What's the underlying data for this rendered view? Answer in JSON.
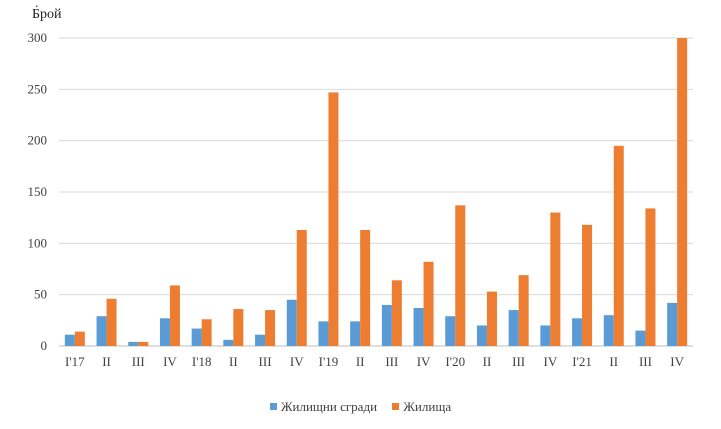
{
  "chart_data": {
    "type": "bar",
    "title": "",
    "top_mark": ".",
    "ylabel": "Брой",
    "xlabel": "",
    "ylim": [
      0,
      300
    ],
    "yticks": [
      0,
      50,
      100,
      150,
      200,
      250,
      300
    ],
    "grid": true,
    "legend_position": "bottom",
    "categories": [
      "I'17",
      "II",
      "III",
      "IV",
      "I'18",
      "II",
      "III",
      "IV",
      "I'19",
      "II",
      "III",
      "IV",
      "I'20",
      "II",
      "III",
      "IV",
      "I'21",
      "II",
      "III",
      "IV"
    ],
    "series": [
      {
        "name": "Жилищни сгради",
        "color": "#5B9BD5",
        "values": [
          11,
          29,
          4,
          27,
          17,
          6,
          11,
          45,
          24,
          24,
          40,
          37,
          29,
          20,
          35,
          20,
          27,
          30,
          15,
          42
        ]
      },
      {
        "name": "Жилища",
        "color": "#ED7D31",
        "values": [
          14,
          46,
          4,
          59,
          26,
          36,
          35,
          113,
          247,
          113,
          64,
          82,
          137,
          53,
          69,
          130,
          118,
          195,
          134,
          300
        ]
      }
    ]
  }
}
